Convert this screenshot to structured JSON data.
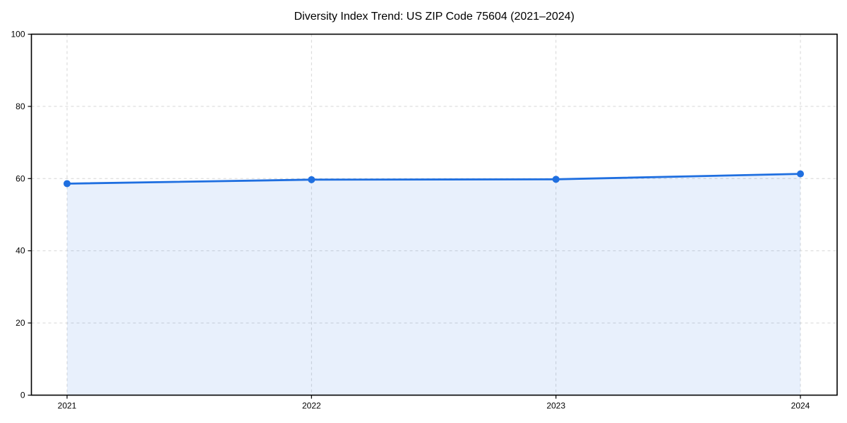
{
  "chart_data": {
    "type": "area",
    "title": "Diversity Index Trend: US ZIP Code 75604 (2021–2024)",
    "x": [
      "2021",
      "2022",
      "2023",
      "2024"
    ],
    "series": [
      {
        "name": "Diversity Index",
        "values": [
          58.6,
          59.7,
          59.8,
          61.3
        ]
      }
    ],
    "xlabel": "",
    "ylabel": "",
    "ylim": [
      0,
      100
    ],
    "yticks": [
      0,
      20,
      40,
      60,
      80,
      100
    ],
    "grid": "dashed-both-axes",
    "legend": "none",
    "marker": "circle",
    "colors": {
      "line": "#1f6fe0",
      "marker": "#1f6fe0",
      "fill": "rgba(31,111,224,0.10)",
      "grid": "#d6d6d6",
      "axis": "#000000",
      "text": "#000000",
      "background": "#ffffff"
    }
  }
}
